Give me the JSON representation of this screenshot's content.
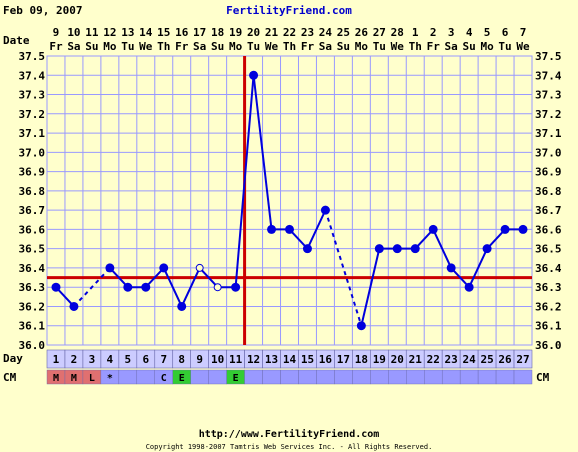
{
  "header": {
    "date": "Feb 09, 2007",
    "site": "FertilityFriend.com"
  },
  "footer": {
    "url": "http://www.FertilityFriend.com",
    "copyright": "Copyright 1998-2007 Tamtris Web Services Inc. - All Rights Reserved."
  },
  "labels": {
    "date_row": "Date",
    "day_row": "Day",
    "cm_row": "CM"
  },
  "colors": {
    "background": "#ffffcc",
    "plot_bg": "#ffffcc",
    "grid": "#9999ff",
    "line": "#0000dd",
    "overlay": "#cc0000",
    "header_site": "#0000cc",
    "cycle_bg": "#ccccff",
    "cm_bg": "#9999ff",
    "menses_bg": "#e07070",
    "egg_white_bg": "#33cc33"
  },
  "chart_data": {
    "type": "line",
    "x_dates": [
      "9",
      "10",
      "11",
      "12",
      "13",
      "14",
      "15",
      "16",
      "17",
      "18",
      "19",
      "20",
      "21",
      "22",
      "23",
      "24",
      "25",
      "26",
      "27",
      "28",
      "1",
      "2",
      "3",
      "4",
      "5",
      "6",
      "7"
    ],
    "x_weekdays": [
      "Fr",
      "Sa",
      "Su",
      "Mo",
      "Tu",
      "We",
      "Th",
      "Fr",
      "Sa",
      "Su",
      "Mo",
      "Tu",
      "We",
      "Th",
      "Fr",
      "Sa",
      "Su",
      "Mo",
      "Tu",
      "We",
      "Th",
      "Fr",
      "Sa",
      "Su",
      "Mo",
      "Tu",
      "We"
    ],
    "cycle_days": [
      "1",
      "2",
      "3",
      "4",
      "5",
      "6",
      "7",
      "8",
      "9",
      "10",
      "11",
      "12",
      "13",
      "14",
      "15",
      "16",
      "17",
      "18",
      "19",
      "20",
      "21",
      "22",
      "23",
      "24",
      "25",
      "26",
      "27"
    ],
    "cervical_mucus": [
      "M",
      "M",
      "L",
      "*",
      "",
      "",
      "C",
      "E",
      "",
      "",
      "E",
      "",
      "",
      "",
      "",
      "",
      "",
      "",
      "",
      "",
      "",
      "",
      "",
      "",
      "",
      "",
      ""
    ],
    "ylim": [
      36.0,
      37.5
    ],
    "y_ticks": [
      "36.0",
      "36.1",
      "36.2",
      "36.3",
      "36.4",
      "36.5",
      "36.6",
      "36.7",
      "36.8",
      "36.9",
      "37.0",
      "37.1",
      "37.2",
      "37.3",
      "37.4",
      "37.5"
    ],
    "temperatures": [
      36.3,
      36.2,
      null,
      36.4,
      36.3,
      36.3,
      36.4,
      36.2,
      36.4,
      36.3,
      36.3,
      37.4,
      36.6,
      36.6,
      36.5,
      36.7,
      null,
      36.1,
      36.5,
      36.5,
      36.5,
      36.6,
      36.4,
      36.3,
      36.5,
      36.6,
      36.6
    ],
    "discarded_days": [
      9,
      10
    ],
    "coverline": 36.35,
    "ovulation_day": 11,
    "grid": true
  }
}
